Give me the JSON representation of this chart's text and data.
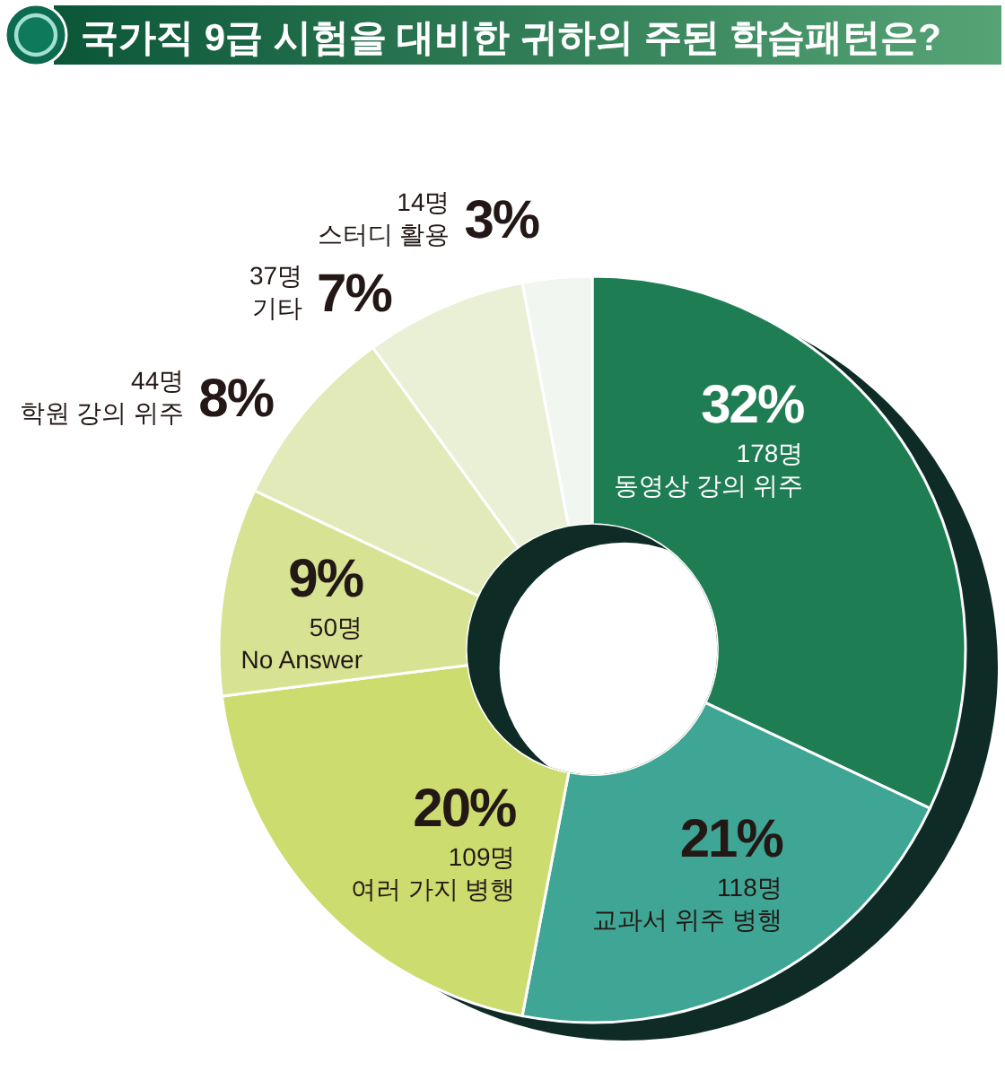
{
  "chart_data": {
    "type": "donut",
    "title": "국가직 9급 시험을 대비한 귀하의 주된 학습패턴은?",
    "categories": [
      "동영상 강의 위주",
      "교과서 위주 병행",
      "여러 가지 병행",
      "No Answer",
      "학원 강의 위주",
      "기타",
      "스터디 활용"
    ],
    "values": [
      32,
      21,
      20,
      9,
      8,
      7,
      3
    ],
    "value_labels": [
      "32%",
      "21%",
      "20%",
      "9%",
      "8%",
      "7%",
      "3%"
    ],
    "colors": [
      "#1f7d53",
      "#3fa594",
      "#cddc6f",
      "#d7e393",
      "#e1eab8",
      "#e9f0d6",
      "#f1f6f1"
    ],
    "annotations": [
      {
        "text": "178명",
        "x": "동영상 강의 위주"
      },
      {
        "text": "118명",
        "x": "교과서 위주 병행"
      },
      {
        "text": "109명",
        "x": "여러 가지 병행"
      },
      {
        "text": "50명",
        "x": "No Answer"
      },
      {
        "text": "44명",
        "x": "학원 강의 위주"
      },
      {
        "text": "37명",
        "x": "기타"
      },
      {
        "text": "14명",
        "x": "스터디 활용"
      }
    ]
  }
}
